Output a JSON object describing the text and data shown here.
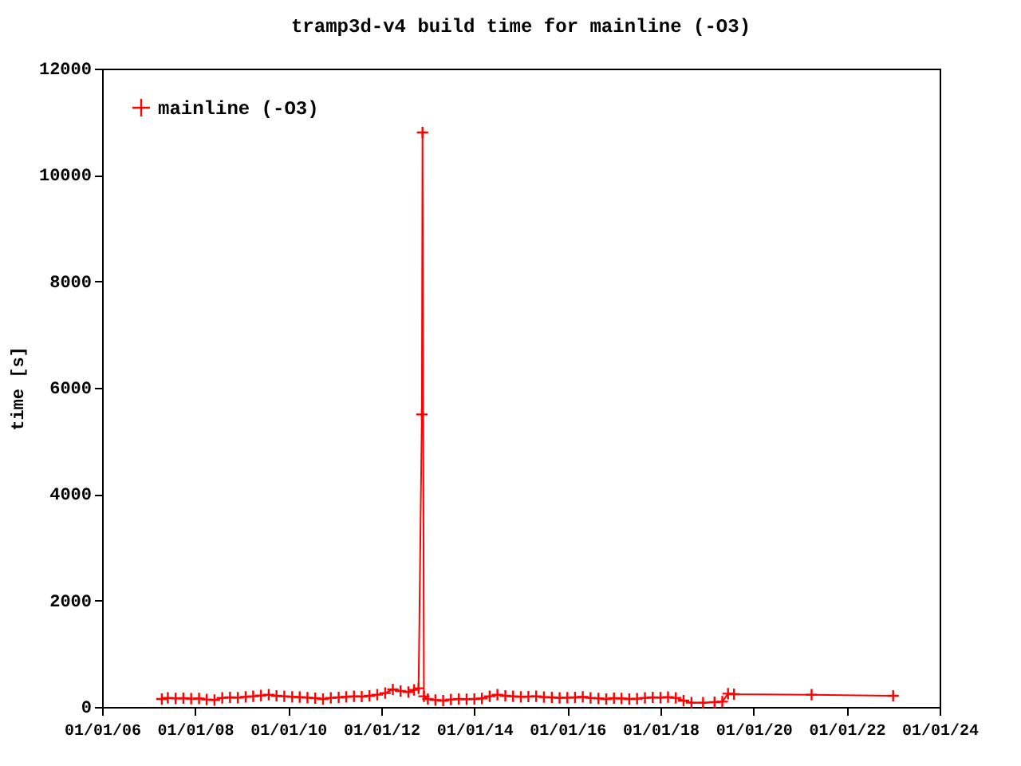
{
  "chart_data": {
    "type": "line",
    "title": "tramp3d-v4 build time for mainline (-O3)",
    "ylabel": "time [s]",
    "xlim": [
      "2006-01-01",
      "2024-01-01"
    ],
    "xticks": [
      {
        "value": "2006-01-01",
        "label": "01/01/06"
      },
      {
        "value": "2008-01-01",
        "label": "01/01/08"
      },
      {
        "value": "2010-01-01",
        "label": "01/01/10"
      },
      {
        "value": "2012-01-01",
        "label": "01/01/12"
      },
      {
        "value": "2014-01-01",
        "label": "01/01/14"
      },
      {
        "value": "2016-01-01",
        "label": "01/01/16"
      },
      {
        "value": "2018-01-01",
        "label": "01/01/18"
      },
      {
        "value": "2020-01-01",
        "label": "01/01/20"
      },
      {
        "value": "2022-01-01",
        "label": "01/01/22"
      },
      {
        "value": "2024-01-01",
        "label": "01/01/24"
      }
    ],
    "ylim": [
      0,
      12000
    ],
    "yticks": [
      0,
      2000,
      4000,
      6000,
      8000,
      10000,
      12000
    ],
    "marker": "cross",
    "line_style": "solid",
    "legend": "top left",
    "grid": false,
    "series": [
      {
        "name": "mainline (-O3)",
        "color": "#ff0000",
        "x": [
          "2007-04-15",
          "2007-06-01",
          "2007-08-01",
          "2007-10-01",
          "2007-12-01",
          "2008-02-01",
          "2008-04-01",
          "2008-06-01",
          "2008-08-01",
          "2008-10-01",
          "2008-12-01",
          "2009-02-01",
          "2009-04-01",
          "2009-06-01",
          "2009-08-01",
          "2009-10-01",
          "2009-12-01",
          "2010-02-01",
          "2010-04-01",
          "2010-06-01",
          "2010-08-01",
          "2010-10-01",
          "2010-12-01",
          "2011-02-01",
          "2011-04-01",
          "2011-06-01",
          "2011-08-01",
          "2011-10-01",
          "2011-12-01",
          "2012-02-01",
          "2012-04-01",
          "2012-06-01",
          "2012-08-01",
          "2012-09-15",
          "2012-10-20",
          "2012-11-15",
          "2012-11-20",
          "2012-12-01",
          "2013-01-01",
          "2013-03-01",
          "2013-05-01",
          "2013-07-01",
          "2013-09-01",
          "2013-11-01",
          "2014-01-01",
          "2014-03-01",
          "2014-05-01",
          "2014-07-01",
          "2014-09-01",
          "2014-11-01",
          "2015-01-01",
          "2015-03-01",
          "2015-05-01",
          "2015-07-01",
          "2015-09-01",
          "2015-11-01",
          "2016-01-01",
          "2016-03-01",
          "2016-05-01",
          "2016-07-01",
          "2016-09-01",
          "2016-11-01",
          "2017-01-01",
          "2017-03-01",
          "2017-05-01",
          "2017-07-01",
          "2017-09-01",
          "2017-11-01",
          "2018-01-01",
          "2018-03-01",
          "2018-05-01",
          "2018-07-01",
          "2018-09-01",
          "2018-12-01",
          "2019-03-01",
          "2019-05-01",
          "2019-06-15",
          "2019-08-01",
          "2021-04-01",
          "2023-01-01"
        ],
        "values": [
          150,
          170,
          160,
          165,
          155,
          160,
          140,
          130,
          170,
          180,
          175,
          190,
          200,
          215,
          230,
          210,
          200,
          190,
          185,
          175,
          165,
          150,
          170,
          180,
          190,
          200,
          195,
          210,
          230,
          260,
          330,
          300,
          280,
          320,
          350,
          5500,
          10800,
          200,
          150,
          130,
          120,
          140,
          150,
          145,
          150,
          160,
          200,
          230,
          210,
          200,
          190,
          195,
          200,
          185,
          180,
          170,
          175,
          180,
          190,
          170,
          160,
          150,
          165,
          160,
          150,
          155,
          170,
          180,
          175,
          185,
          170,
          120,
          80,
          80,
          90,
          100,
          250,
          240,
          230,
          210
        ]
      }
    ]
  }
}
